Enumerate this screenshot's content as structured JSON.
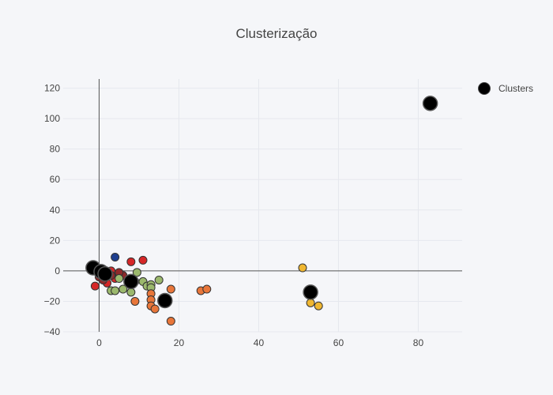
{
  "chart_data": {
    "type": "scatter",
    "title": "Clusterização",
    "xlim": [
      -9,
      91
    ],
    "ylim": [
      -40,
      126
    ],
    "xticks": [
      0,
      20,
      40,
      60,
      80
    ],
    "yticks": [
      -40,
      -20,
      0,
      20,
      40,
      60,
      80,
      100,
      120
    ],
    "grid": true,
    "legend": {
      "placement": "top-right",
      "entries": [
        "Clusters"
      ]
    },
    "colors": {
      "red": "#d62728",
      "darkred": "#8f2a2a",
      "blue": "#1f3f8f",
      "green": "#9bb86d",
      "orange": "#e8763a",
      "gold": "#f0b731",
      "cluster": "#000000"
    },
    "series": [
      {
        "color": "red",
        "points": [
          [
            -1,
            -10
          ],
          [
            2,
            -8
          ],
          [
            4,
            -5
          ],
          [
            8,
            6
          ],
          [
            11,
            7
          ],
          [
            3,
            0
          ],
          [
            5,
            -2
          ]
        ]
      },
      {
        "color": "darkred",
        "points": [
          [
            0,
            -4
          ],
          [
            1,
            -6
          ],
          [
            3,
            -3
          ],
          [
            6,
            -3
          ],
          [
            5,
            -1
          ]
        ]
      },
      {
        "color": "blue",
        "points": [
          [
            4,
            9
          ]
        ]
      },
      {
        "color": "green",
        "points": [
          [
            3,
            -13
          ],
          [
            4,
            -13
          ],
          [
            5,
            -5
          ],
          [
            6,
            -12
          ],
          [
            8,
            -14
          ],
          [
            9,
            -7
          ],
          [
            9.5,
            -1
          ],
          [
            11,
            -7
          ],
          [
            12,
            -10
          ],
          [
            13,
            -9
          ],
          [
            13,
            -11
          ],
          [
            15,
            -6
          ]
        ]
      },
      {
        "color": "orange",
        "points": [
          [
            9,
            -20
          ],
          [
            13,
            -15
          ],
          [
            13,
            -19
          ],
          [
            13,
            -23
          ],
          [
            14,
            -25
          ],
          [
            18,
            -12
          ],
          [
            18,
            -33
          ],
          [
            25.5,
            -13
          ],
          [
            27,
            -12
          ]
        ]
      },
      {
        "color": "gold",
        "points": [
          [
            51,
            2
          ],
          [
            53,
            -21
          ],
          [
            55,
            -23
          ]
        ]
      }
    ],
    "clusters": {
      "name": "Clusters",
      "points": [
        [
          -1.5,
          2
        ],
        [
          0.5,
          -0.5
        ],
        [
          1.5,
          -2
        ],
        [
          8,
          -7
        ],
        [
          16.5,
          -19.5
        ],
        [
          53,
          -14
        ],
        [
          83,
          110
        ]
      ]
    }
  }
}
